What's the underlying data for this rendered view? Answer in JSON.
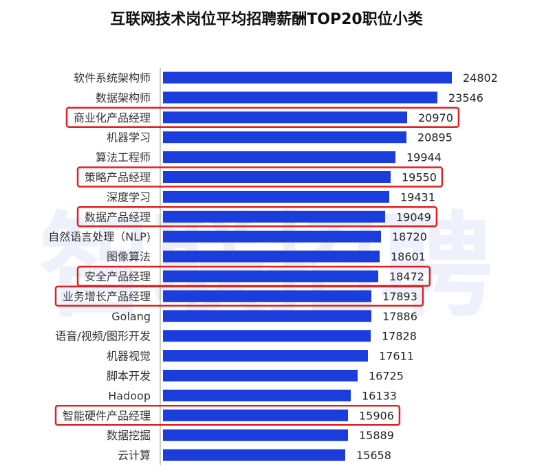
{
  "chart_data": {
    "type": "bar",
    "orientation": "horizontal",
    "title": "互联网技术岗位平均招聘薪酬TOP20职位小类",
    "categories": [
      "软件系统架构师",
      "数据架构师",
      "商业化产品经理",
      "机器学习",
      "算法工程师",
      "策略产品经理",
      "深度学习",
      "数据产品经理",
      "自然语言处理（NLP)",
      "图像算法",
      "安全产品经理",
      "业务增长产品经理",
      "Golang",
      "语音/视频/图形开发",
      "机器视觉",
      "脚本开发",
      "Hadoop",
      "智能硬件产品经理",
      "数据挖掘",
      "云计算"
    ],
    "values": [
      24802,
      23546,
      20970,
      20895,
      19944,
      19550,
      19431,
      19049,
      18720,
      18601,
      18472,
      17893,
      17886,
      17828,
      17611,
      16725,
      16133,
      15906,
      15889,
      15658
    ],
    "highlighted": [
      "商业化产品经理",
      "策略产品经理",
      "数据产品经理",
      "安全产品经理",
      "业务增长产品经理",
      "智能硬件产品经理"
    ],
    "xlim": [
      0,
      24802
    ],
    "grid": false,
    "legend": "none",
    "watermark": "智联招聘"
  },
  "colors": {
    "bar": "#1a3ddb",
    "highlight_box": "#e02020",
    "axis": "#999999",
    "watermark": "#eef1fb"
  }
}
